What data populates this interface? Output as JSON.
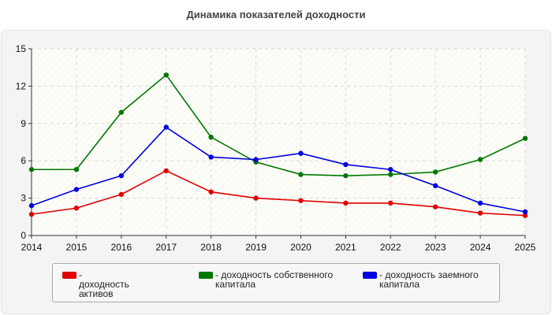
{
  "chart_data": {
    "type": "line",
    "title": "Динамика показателей доходности",
    "x": [
      "2014",
      "2015",
      "2016",
      "2017",
      "2018",
      "2019",
      "2020",
      "2021",
      "2022",
      "2023",
      "2024",
      "2025"
    ],
    "ylim": [
      0,
      15
    ],
    "yticks": [
      0,
      3,
      6,
      9,
      12,
      15
    ],
    "grid": true,
    "legend_position": "bottom",
    "series": [
      {
        "name": "- доходность активов",
        "color": "#e00000",
        "values": [
          1.7,
          2.2,
          3.3,
          5.2,
          3.5,
          3.0,
          2.8,
          2.6,
          2.6,
          2.3,
          1.8,
          1.6
        ]
      },
      {
        "name": "- доходность собственного капитала",
        "color": "#007800",
        "values": [
          5.3,
          5.3,
          9.9,
          12.9,
          7.9,
          5.9,
          4.9,
          4.8,
          4.9,
          5.1,
          6.1,
          7.8
        ]
      },
      {
        "name": "- доходность заемного капитала",
        "color": "#0000e0",
        "values": [
          2.4,
          3.7,
          4.8,
          8.7,
          6.3,
          6.1,
          6.6,
          5.7,
          5.3,
          4.0,
          2.6,
          1.9
        ]
      }
    ]
  }
}
